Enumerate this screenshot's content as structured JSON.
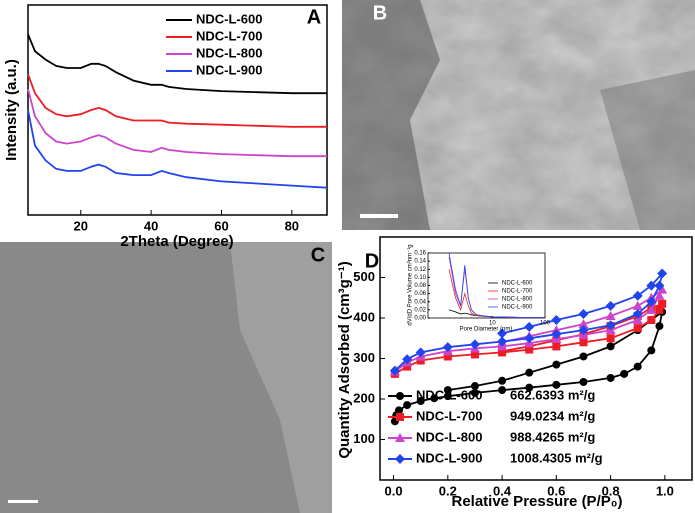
{
  "chart_data": [
    {
      "type": "line",
      "panel_label": "A",
      "xlabel": "2Theta (Degree)",
      "ylabel": "Intensity (a.u.)",
      "xlim": [
        5,
        90
      ],
      "ylim": [
        0,
        100
      ],
      "xticks": [
        20,
        40,
        60,
        80
      ],
      "log_x": false,
      "x": [
        5,
        7,
        10,
        13,
        16,
        20,
        23,
        25,
        27,
        30,
        35,
        40,
        43,
        45,
        50,
        60,
        70,
        80,
        90
      ],
      "series": [
        {
          "name": "NDC-L-600",
          "color": "#000000",
          "values": [
            86,
            78,
            74,
            71,
            70,
            70,
            72,
            72,
            71,
            68,
            64,
            62,
            62,
            61,
            60,
            59,
            58.5,
            58,
            58
          ]
        },
        {
          "name": "NDC-L-700",
          "color": "#ee1c24",
          "values": [
            67,
            58,
            51,
            48,
            47,
            48,
            50,
            51,
            50,
            47,
            45,
            45,
            45,
            44,
            43.5,
            43,
            42.5,
            42,
            42
          ]
        },
        {
          "name": "NDC-L-800",
          "color": "#cc44cc",
          "values": [
            60,
            47,
            39,
            35,
            34,
            35,
            37,
            38,
            37,
            34,
            31,
            30,
            32,
            31,
            30,
            29,
            28.5,
            28,
            28
          ]
        },
        {
          "name": "NDC-L-900",
          "color": "#2244ee",
          "values": [
            50,
            33,
            26,
            22,
            21,
            21,
            23,
            24,
            23,
            20,
            19,
            19,
            21,
            20,
            18,
            16,
            15,
            14,
            13
          ]
        }
      ]
    },
    {
      "type": "line",
      "panel_label": "D",
      "xlabel": "Relative Pressure (P/P₀)",
      "ylabel": "Quantity Adsorbed (cm³g⁻¹)",
      "xlim": [
        -0.05,
        1.1
      ],
      "ylim": [
        0,
        600
      ],
      "log_x": false,
      "xticks": [
        {
          "value": 0,
          "label": "0.0"
        },
        {
          "value": 0.2,
          "label": "0.2"
        },
        {
          "value": 0.4,
          "label": "0.4"
        },
        {
          "value": 0.6,
          "label": "0.6"
        },
        {
          "value": 0.8,
          "label": "0.8"
        },
        {
          "value": 1,
          "label": "1.0"
        }
      ],
      "yticks": [
        100,
        200,
        300,
        400,
        500
      ],
      "series": [
        {
          "name": "NDC-L-600",
          "area_label": "662.6393 m²/g",
          "color": "#000000",
          "marker": "circle",
          "x": [
            0.005,
            0.01,
            0.02,
            0.05,
            0.1,
            0.15,
            0.2,
            0.3,
            0.4,
            0.5,
            0.6,
            0.7,
            0.8,
            0.85,
            0.9,
            0.95,
            0.98,
            0.99,
            0.95,
            0.9,
            0.8,
            0.7,
            0.6,
            0.5,
            0.4,
            0.3,
            0.2
          ],
          "values": [
            145,
            160,
            172,
            185,
            195,
            202,
            207,
            215,
            222,
            228,
            235,
            242,
            252,
            262,
            280,
            320,
            380,
            415,
            395,
            370,
            330,
            305,
            285,
            265,
            245,
            232,
            222
          ]
        },
        {
          "name": "NDC-L-700",
          "area_label": "949.0234 m²/g",
          "color": "#ee1c24",
          "marker": "square",
          "x": [
            0.005,
            0.05,
            0.1,
            0.2,
            0.3,
            0.4,
            0.5,
            0.6,
            0.7,
            0.8,
            0.9,
            0.95,
            0.98,
            0.99,
            0.95,
            0.9,
            0.8,
            0.7,
            0.6,
            0.5,
            0.4
          ],
          "values": [
            262,
            280,
            295,
            305,
            310,
            315,
            322,
            330,
            340,
            350,
            375,
            395,
            420,
            435,
            425,
            405,
            380,
            360,
            345,
            330,
            318
          ]
        },
        {
          "name": "NDC-L-800",
          "area_label": "988.4265 m²/g",
          "color": "#cc44cc",
          "marker": "triangle",
          "x": [
            0.005,
            0.05,
            0.1,
            0.2,
            0.3,
            0.4,
            0.5,
            0.6,
            0.7,
            0.8,
            0.9,
            0.95,
            0.98,
            0.99,
            0.95,
            0.9,
            0.8,
            0.7,
            0.6,
            0.5,
            0.4
          ],
          "values": [
            268,
            290,
            305,
            318,
            325,
            330,
            338,
            348,
            358,
            370,
            395,
            420,
            455,
            470,
            450,
            430,
            405,
            385,
            370,
            355,
            340
          ]
        },
        {
          "name": "NDC-L-900",
          "area_label": "1008.4305 m²/g",
          "color": "#2244ee",
          "marker": "diamond",
          "x": [
            0.005,
            0.05,
            0.1,
            0.2,
            0.3,
            0.4,
            0.5,
            0.6,
            0.7,
            0.8,
            0.9,
            0.95,
            0.98,
            0.99,
            0.95,
            0.9,
            0.8,
            0.7,
            0.6,
            0.5,
            0.4
          ],
          "values": [
            270,
            298,
            315,
            328,
            335,
            342,
            350,
            360,
            370,
            382,
            410,
            440,
            480,
            510,
            480,
            455,
            430,
            410,
            395,
            378,
            362
          ]
        }
      ]
    },
    {
      "type": "line",
      "xlabel": "Pore Diameter (nm)",
      "ylabel": "dV/dD Pore Volume cm³nm⁻¹g",
      "xlim": [
        0.6,
        100
      ],
      "ylim": [
        0,
        0.16
      ],
      "log_x": true,
      "xticks": [
        10,
        100
      ],
      "yticks": [
        {
          "value": 0,
          "label": "0.00"
        },
        {
          "value": 0.02,
          "label": "0.02"
        },
        {
          "value": 0.04,
          "label": "0.04"
        },
        {
          "value": 0.06,
          "label": "0.06"
        },
        {
          "value": 0.08,
          "label": "0.08"
        },
        {
          "value": 0.1,
          "label": "0.10"
        },
        {
          "value": 0.12,
          "label": "0.12"
        },
        {
          "value": 0.14,
          "label": "0.14"
        },
        {
          "value": 0.16,
          "label": "0.16"
        }
      ],
      "x": [
        1.5,
        2,
        2.5,
        3,
        3.5,
        4,
        5,
        7,
        10,
        20,
        50,
        100
      ],
      "series": [
        {
          "name": "NDC-L-600",
          "color": "#000000",
          "values": [
            0.02,
            0.015,
            0.01,
            0.012,
            0.01,
            0.008,
            0.006,
            0.004,
            0.003,
            0.002,
            0.001,
            0.001
          ]
        },
        {
          "name": "NDC-L-700",
          "color": "#ee1c24",
          "values": [
            0.12,
            0.05,
            0.02,
            0.06,
            0.03,
            0.012,
            0.006,
            0.004,
            0.003,
            0.002,
            0.001,
            0.001
          ]
        },
        {
          "name": "NDC-L-800",
          "color": "#cc44cc",
          "values": [
            0.15,
            0.06,
            0.03,
            0.12,
            0.05,
            0.02,
            0.008,
            0.005,
            0.003,
            0.002,
            0.001,
            0.001
          ]
        },
        {
          "name": "NDC-L-900",
          "color": "#2244ee",
          "values": [
            0.16,
            0.07,
            0.03,
            0.13,
            0.05,
            0.02,
            0.008,
            0.005,
            0.003,
            0.002,
            0.001,
            0.001
          ]
        }
      ]
    }
  ],
  "images": [
    {
      "label": "B"
    },
    {
      "label": "C"
    }
  ]
}
